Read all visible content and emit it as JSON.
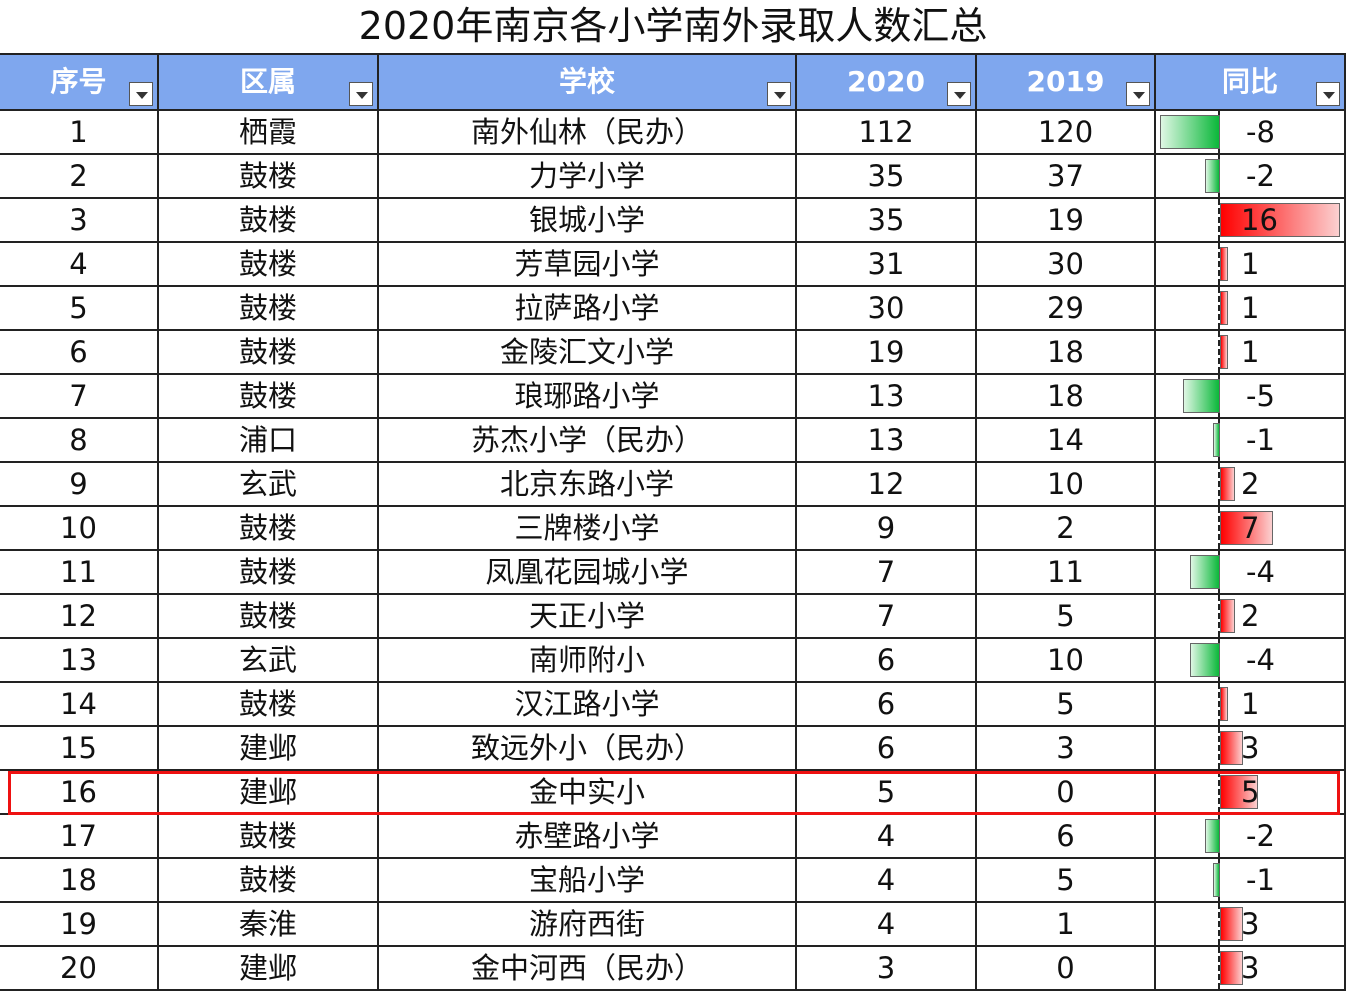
{
  "title": "2020年南京各小学南外录取人数汇总",
  "headers": [
    "序号",
    "区属",
    "学校",
    "2020",
    "2019",
    "同比"
  ],
  "rows": [
    [
      "1",
      "栖霞",
      "南外仙林（民办）",
      "112",
      "120",
      "-8"
    ],
    [
      "2",
      "鼓楼",
      "力学小学",
      "35",
      "37",
      "-2"
    ],
    [
      "3",
      "鼓楼",
      "银城小学",
      "35",
      "19",
      "16"
    ],
    [
      "4",
      "鼓楼",
      "芳草园小学",
      "31",
      "30",
      "1"
    ],
    [
      "5",
      "鼓楼",
      "拉萨路小学",
      "30",
      "29",
      "1"
    ],
    [
      "6",
      "鼓楼",
      "金陵汇文小学",
      "19",
      "18",
      "1"
    ],
    [
      "7",
      "鼓楼",
      "琅琊路小学",
      "13",
      "18",
      "-5"
    ],
    [
      "8",
      "浦口",
      "苏杰小学（民办）",
      "13",
      "14",
      "-1"
    ],
    [
      "9",
      "玄武",
      "北京东路小学",
      "12",
      "10",
      "2"
    ],
    [
      "10",
      "鼓楼",
      "三牌楼小学",
      "9",
      "2",
      "7"
    ],
    [
      "11",
      "鼓楼",
      "凤凰花园城小学",
      "7",
      "11",
      "-4"
    ],
    [
      "12",
      "鼓楼",
      "天正小学",
      "7",
      "5",
      "2"
    ],
    [
      "13",
      "玄武",
      "南师附小",
      "6",
      "10",
      "-4"
    ],
    [
      "14",
      "鼓楼",
      "汉江路小学",
      "6",
      "5",
      "1"
    ],
    [
      "15",
      "建邺",
      "致远外小（民办）",
      "6",
      "3",
      "3"
    ],
    [
      "16",
      "建邺",
      "金中实小",
      "5",
      "0",
      "5"
    ],
    [
      "17",
      "鼓楼",
      "赤壁路小学",
      "4",
      "6",
      "-2"
    ],
    [
      "18",
      "鼓楼",
      "宝船小学",
      "4",
      "5",
      "-1"
    ],
    [
      "19",
      "秦淮",
      "游府西街",
      "4",
      "1",
      "3"
    ],
    [
      "20",
      "建邺",
      "金中河西（民办）",
      "3",
      "0",
      "3"
    ]
  ],
  "highlighted_row": "16",
  "colors": {
    "header": "#7fa7ee",
    "negative_bar": "#0bb83a",
    "positive_bar": "#ff0000",
    "highlight": "#e11111"
  }
}
